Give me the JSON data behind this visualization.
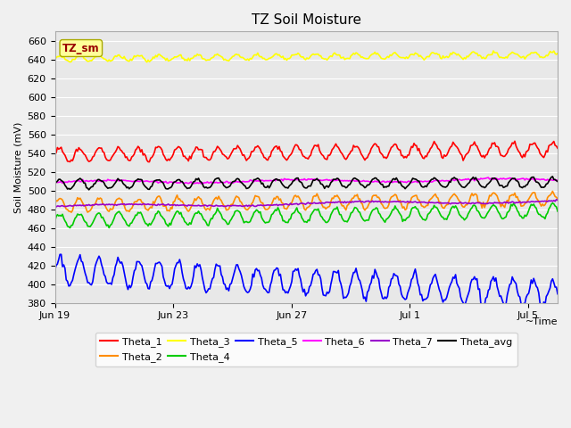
{
  "title": "TZ Soil Moisture",
  "ylabel": "Soil Moisture (mV)",
  "xlabel": "~Time",
  "ylim": [
    380,
    670
  ],
  "yticks": [
    380,
    400,
    420,
    440,
    460,
    480,
    500,
    520,
    540,
    560,
    580,
    600,
    620,
    640,
    660
  ],
  "xtick_labels": [
    "Jun 19",
    "Jun 23",
    "Jun 27",
    "Jul 1",
    "Jul 5"
  ],
  "xtick_positions": [
    0,
    4,
    8,
    12,
    16
  ],
  "n_points": 400,
  "duration_days": 17,
  "series": {
    "Theta_1": {
      "color": "#ff0000",
      "base": 538,
      "amplitude": 7,
      "freq_per_day": 1.5,
      "trend": 0.35,
      "noise": 1.2
    },
    "Theta_2": {
      "color": "#ff8c00",
      "base": 484,
      "amplitude": 7,
      "freq_per_day": 1.5,
      "trend": 0.4,
      "noise": 1.2
    },
    "Theta_3": {
      "color": "#ffff00",
      "base": 641,
      "amplitude": 3,
      "freq_per_day": 1.5,
      "trend": 0.25,
      "noise": 0.8
    },
    "Theta_4": {
      "color": "#00cc00",
      "base": 468,
      "amplitude": 7,
      "freq_per_day": 1.5,
      "trend": 0.6,
      "noise": 1.0
    },
    "Theta_5": {
      "color": "#0000ff",
      "base": 415,
      "amplitude": 14,
      "freq_per_day": 1.5,
      "trend": -1.5,
      "noise": 2.0
    },
    "Theta_6": {
      "color": "#ff00ff",
      "base": 509,
      "amplitude": 1.5,
      "freq_per_day": 0.15,
      "trend": 0.15,
      "noise": 0.5
    },
    "Theta_7": {
      "color": "#9900cc",
      "base": 483,
      "amplitude": 1.5,
      "freq_per_day": 0.12,
      "trend": 0.35,
      "noise": 0.4
    },
    "Theta_avg": {
      "color": "#000000",
      "base": 507,
      "amplitude": 5,
      "freq_per_day": 1.5,
      "trend": 0.1,
      "noise": 0.8
    }
  },
  "legend_order": [
    "Theta_1",
    "Theta_2",
    "Theta_3",
    "Theta_4",
    "Theta_5",
    "Theta_6",
    "Theta_7",
    "Theta_avg"
  ],
  "background_color": "#e8e8e8",
  "figure_facecolor": "#f0f0f0",
  "tz_sm_box_facecolor": "#ffff99",
  "tz_sm_text_color": "#990000",
  "tz_sm_box_edgecolor": "#aaaa00",
  "title_fontsize": 11,
  "axis_label_fontsize": 8,
  "tick_fontsize": 8,
  "legend_fontsize": 8,
  "linewidth": 1.2
}
